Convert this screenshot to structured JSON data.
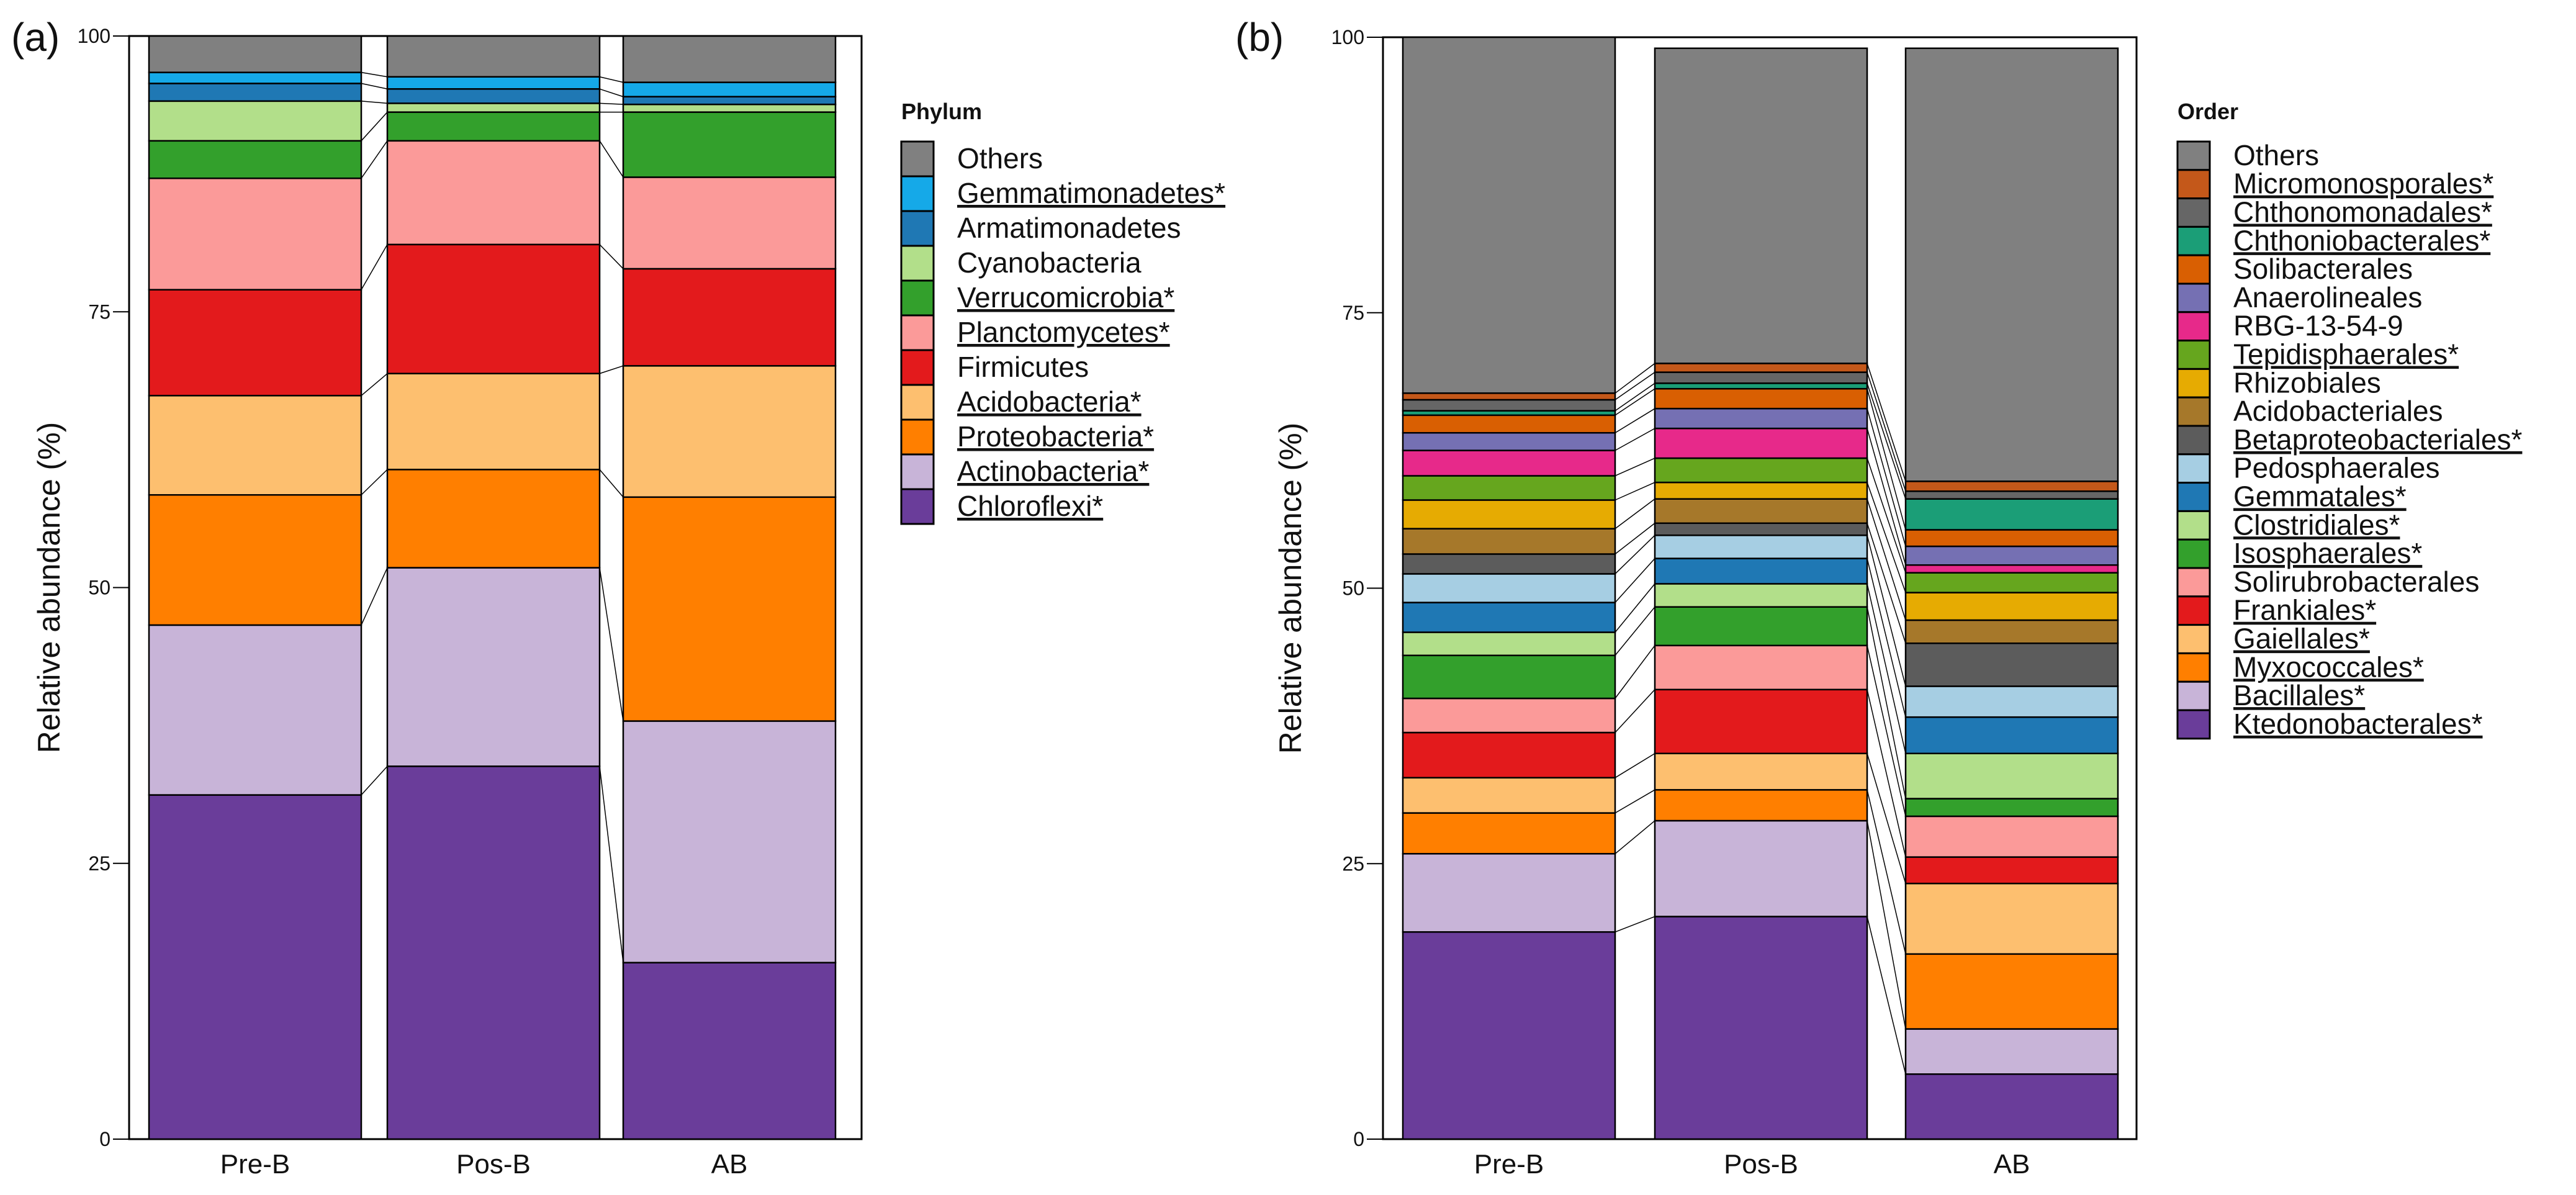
{
  "chart_data": [
    {
      "panel": "(a)",
      "type": "bar",
      "stacked": true,
      "ylabel": "Relative abundance (%)",
      "ylim": [
        0,
        100
      ],
      "yticks": [
        0,
        25,
        50,
        75,
        100
      ],
      "categories": [
        "Pre-B",
        "Pos-B",
        "AB"
      ],
      "legend_title": "Phylum",
      "series": [
        {
          "name": "Chloroflexi*",
          "underlined": true,
          "color": "#6A3D9A",
          "values": [
            31.2,
            33.8,
            16.0
          ]
        },
        {
          "name": "Actinobacteria*",
          "underlined": true,
          "color": "#C8B4D8",
          "values": [
            15.4,
            18.0,
            21.9
          ]
        },
        {
          "name": "Proteobacteria*",
          "underlined": true,
          "color": "#FF7F00",
          "values": [
            11.8,
            8.9,
            20.3
          ]
        },
        {
          "name": "Acidobacteria*",
          "underlined": true,
          "color": "#FDBF6F",
          "values": [
            9.0,
            8.7,
            11.9
          ]
        },
        {
          "name": "Firmicutes",
          "underlined": false,
          "color": "#E31A1C",
          "values": [
            9.6,
            11.7,
            8.8
          ]
        },
        {
          "name": "Planctomycetes*",
          "underlined": true,
          "color": "#FB9A99",
          "values": [
            10.1,
            9.4,
            8.3
          ]
        },
        {
          "name": "Verrucomicrobia*",
          "underlined": true,
          "color": "#33A02C",
          "values": [
            3.4,
            2.6,
            5.9
          ]
        },
        {
          "name": "Cyanobacteria",
          "underlined": false,
          "color": "#B2DF8A",
          "values": [
            3.6,
            0.8,
            0.7
          ]
        },
        {
          "name": "Armatimonadetes",
          "underlined": false,
          "color": "#1F78B4",
          "values": [
            1.6,
            1.3,
            0.7
          ]
        },
        {
          "name": "Gemmatimonadetes*",
          "underlined": true,
          "color": "#15A9E8",
          "values": [
            1.0,
            1.1,
            1.3
          ]
        },
        {
          "name": "Others",
          "underlined": false,
          "color": "#808080",
          "values": [
            3.3,
            3.7,
            4.2
          ]
        }
      ]
    },
    {
      "panel": "(b)",
      "type": "bar",
      "stacked": true,
      "ylabel": "Relative abundance (%)",
      "ylim": [
        0,
        100
      ],
      "yticks": [
        0,
        25,
        50,
        75,
        100
      ],
      "categories": [
        "Pre-B",
        "Pos-B",
        "AB"
      ],
      "legend_title": "Order",
      "series": [
        {
          "name": "Ktedonobacterales*",
          "underlined": true,
          "color": "#6A3D9A",
          "values": [
            18.8,
            20.2,
            5.9
          ]
        },
        {
          "name": "Bacillales*",
          "underlined": true,
          "color": "#C8B4D8",
          "values": [
            7.1,
            8.7,
            4.1
          ]
        },
        {
          "name": "Myxococcales*",
          "underlined": true,
          "color": "#FF7F00",
          "values": [
            3.7,
            2.8,
            6.8
          ]
        },
        {
          "name": "Gaiellales*",
          "underlined": true,
          "color": "#FDBF6F",
          "values": [
            3.2,
            3.3,
            6.4
          ]
        },
        {
          "name": "Frankiales*",
          "underlined": true,
          "color": "#E31A1C",
          "values": [
            4.1,
            5.8,
            2.4
          ]
        },
        {
          "name": "Solirubrobacterales",
          "underlined": false,
          "color": "#FB9A99",
          "values": [
            3.1,
            4.0,
            3.7
          ]
        },
        {
          "name": "Isosphaerales*",
          "underlined": true,
          "color": "#33A02C",
          "values": [
            3.9,
            3.5,
            1.6
          ]
        },
        {
          "name": "Clostridiales*",
          "underlined": true,
          "color": "#B2DF8A",
          "values": [
            2.1,
            2.1,
            4.1
          ]
        },
        {
          "name": "Gemmatales*",
          "underlined": true,
          "color": "#1F78B4",
          "values": [
            2.7,
            2.3,
            3.3
          ]
        },
        {
          "name": "Pedosphaerales",
          "underlined": false,
          "color": "#A6CEE3",
          "values": [
            2.6,
            2.1,
            2.8
          ]
        },
        {
          "name": "Betaproteobacteriales*",
          "underlined": true,
          "color": "#5C5C5C",
          "values": [
            1.8,
            1.1,
            3.9
          ]
        },
        {
          "name": "Acidobacteriales",
          "underlined": false,
          "color": "#A6782A",
          "values": [
            2.3,
            2.2,
            2.1
          ]
        },
        {
          "name": "Rhizobiales",
          "underlined": false,
          "color": "#E6AB02",
          "values": [
            2.6,
            1.5,
            2.5
          ]
        },
        {
          "name": "Tepidisphaerales*",
          "underlined": true,
          "color": "#66A61E",
          "values": [
            2.2,
            2.2,
            1.8
          ]
        },
        {
          "name": "RBG-13-54-9",
          "underlined": false,
          "color": "#E7298A",
          "values": [
            2.3,
            2.7,
            0.7
          ]
        },
        {
          "name": "Anaerolineales",
          "underlined": false,
          "color": "#7570B3",
          "values": [
            1.6,
            1.8,
            1.7
          ]
        },
        {
          "name": "Solibacterales",
          "underlined": false,
          "color": "#D95F02",
          "values": [
            1.6,
            1.8,
            1.5
          ]
        },
        {
          "name": "Chthoniobacterales*",
          "underlined": true,
          "color": "#1B9E77",
          "values": [
            0.4,
            0.5,
            2.8
          ]
        },
        {
          "name": "Chthonomonadales*",
          "underlined": true,
          "color": "#666666",
          "values": [
            1.0,
            1.0,
            0.7
          ]
        },
        {
          "name": "Micromonosporales*",
          "underlined": true,
          "color": "#C4581A",
          "values": [
            0.6,
            0.8,
            0.9
          ]
        },
        {
          "name": "Others",
          "underlined": false,
          "color": "#808080",
          "values": [
            32.3,
            28.6,
            39.3
          ]
        }
      ]
    }
  ]
}
